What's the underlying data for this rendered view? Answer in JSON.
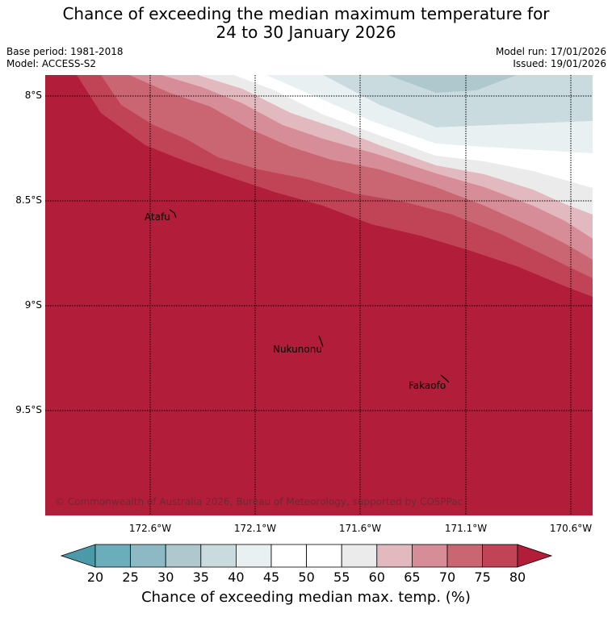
{
  "header": {
    "title_line1": "Chance of exceeding the median maximum temperature for",
    "title_line2": "24 to 30 January 2026",
    "base_period": "Base period: 1981-2018",
    "model": "Model: ACCESS-S2",
    "model_run": "Model run: 17/01/2026",
    "issued": "Issued: 19/01/2026"
  },
  "map": {
    "lat_labels": [
      "8°S",
      "8.5°S",
      "9°S",
      "9.5°S"
    ],
    "lon_labels": [
      "172.6°W",
      "172.1°W",
      "171.6°W",
      "171.1°W",
      "170.6°W"
    ],
    "places": [
      {
        "name": "Atafu"
      },
      {
        "name": "Nukunonu"
      },
      {
        "name": "Fakaofo"
      }
    ],
    "copyright": "© Commonwealth of Australia 2026, Bureau of Meteorology, supported by COSPPac"
  },
  "colorbar": {
    "ticks": [
      "20",
      "25",
      "30",
      "35",
      "40",
      "45",
      "50",
      "55",
      "60",
      "65",
      "70",
      "75",
      "80"
    ],
    "colors": {
      "below_20": "#4a9aaa",
      "c20_25": "#6aaebb",
      "c25_30": "#8cb9c3",
      "c30_35": "#aec8cd",
      "c35_40": "#cadbdf",
      "c40_45": "#e8f0f2",
      "c45_55": "#ffffff",
      "c55_60": "#ecebec",
      "c60_65": "#e1b9be",
      "c65_70": "#d68d97",
      "c70_75": "#c96671",
      "c75_80": "#c04455",
      "above_80": "#b21e39"
    },
    "label": "Chance of exceeding median max. temp. (%)"
  }
}
